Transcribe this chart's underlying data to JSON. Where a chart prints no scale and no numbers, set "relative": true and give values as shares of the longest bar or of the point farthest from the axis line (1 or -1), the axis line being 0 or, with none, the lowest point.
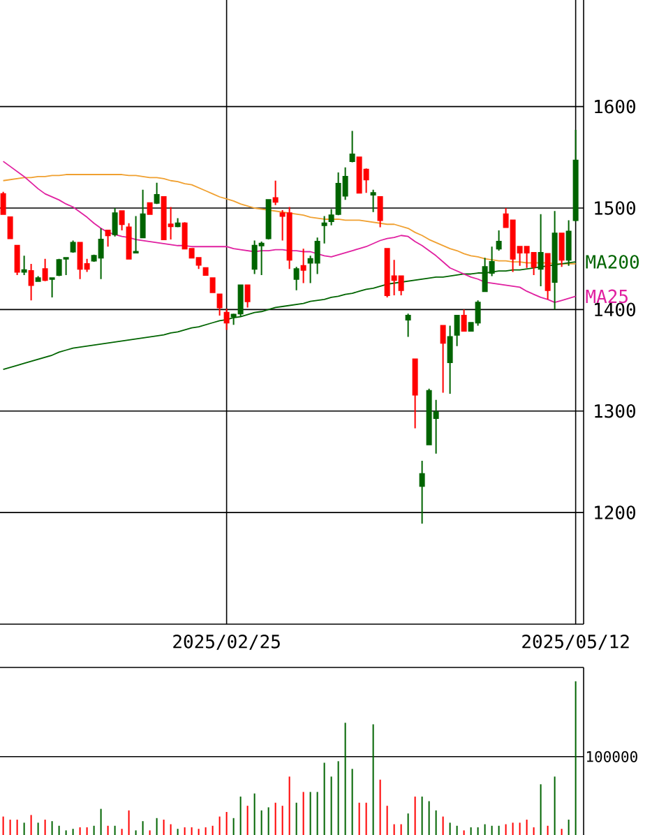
{
  "chart_data": [
    {
      "type": "candlestick",
      "categories": [
        null,
        null,
        null,
        null,
        null,
        null,
        null,
        null,
        null,
        null,
        null,
        null,
        null,
        null,
        null,
        null,
        null,
        null,
        null,
        null,
        null,
        null,
        null,
        null,
        null,
        null,
        null,
        null,
        null,
        null,
        null,
        null,
        "2025/02/25",
        null,
        null,
        null,
        null,
        null,
        null,
        null,
        null,
        null,
        null,
        null,
        null,
        null,
        null,
        null,
        null,
        null,
        null,
        null,
        null,
        null,
        null,
        null,
        null,
        null,
        null,
        null,
        null,
        null,
        null,
        null,
        null,
        null,
        null,
        null,
        null,
        null,
        null,
        null,
        null,
        null,
        null,
        null,
        null,
        null,
        null,
        null,
        null,
        null,
        "2025/05/12"
      ],
      "ohlc": [
        [
          1514,
          1516,
          1494,
          1494
        ],
        [
          1491,
          1491,
          1470,
          1470
        ],
        [
          1463,
          1463,
          1434,
          1437
        ],
        [
          1437,
          1453,
          1434,
          1439
        ],
        [
          1438,
          1445,
          1409,
          1424
        ],
        [
          1428,
          1433,
          1428,
          1431
        ],
        [
          1440,
          1450,
          1428,
          1429
        ],
        [
          1430,
          1431,
          1412,
          1431
        ],
        [
          1434,
          1450,
          1433,
          1449
        ],
        [
          1450,
          1451,
          1434,
          1451
        ],
        [
          1457,
          1468,
          1456,
          1466
        ],
        [
          1466,
          1466,
          1430,
          1440
        ],
        [
          1445,
          1450,
          1437,
          1440
        ],
        [
          1448,
          1454,
          1447,
          1453
        ],
        [
          1451,
          1480,
          1430,
          1469
        ],
        [
          1478,
          1478,
          1462,
          1473
        ],
        [
          1474,
          1500,
          1472,
          1495
        ],
        [
          1497,
          1497,
          1478,
          1484
        ],
        [
          1481,
          1485,
          1450,
          1450
        ],
        [
          1456,
          1492,
          1456,
          1457
        ],
        [
          1471,
          1518,
          1471,
          1494
        ],
        [
          1505,
          1505,
          1494,
          1494
        ],
        [
          1505,
          1525,
          1504,
          1513
        ],
        [
          1511,
          1511,
          1469,
          1469
        ],
        [
          1484,
          1501,
          1469,
          1482
        ],
        [
          1482,
          1490,
          1481,
          1485
        ],
        [
          1485,
          1486,
          1460,
          1460
        ],
        [
          1460,
          1460,
          1451,
          1451
        ],
        [
          1451,
          1451,
          1440,
          1444
        ],
        [
          1441,
          1441,
          1434,
          1434
        ],
        [
          1431,
          1431,
          1417,
          1417
        ],
        [
          1415,
          1415,
          1394,
          1402
        ],
        [
          1397,
          1401,
          1380,
          1387
        ],
        [
          1393,
          1396,
          1385,
          1395
        ],
        [
          1396,
          1424,
          1393,
          1424
        ],
        [
          1424,
          1424,
          1402,
          1408
        ],
        [
          1440,
          1468,
          1435,
          1463
        ],
        [
          1463,
          1467,
          1434,
          1465
        ],
        [
          1470,
          1508,
          1469,
          1508
        ],
        [
          1510,
          1527,
          1503,
          1506
        ],
        [
          1495,
          1498,
          1468,
          1492
        ],
        [
          1495,
          1501,
          1440,
          1449
        ],
        [
          1430,
          1442,
          1419,
          1440
        ],
        [
          1443,
          1460,
          1426,
          1439
        ],
        [
          1446,
          1453,
          1426,
          1450
        ],
        [
          1446,
          1471,
          1435,
          1467
        ],
        [
          1483,
          1492,
          1465,
          1485
        ],
        [
          1487,
          1499,
          1483,
          1493
        ],
        [
          1494,
          1535,
          1493,
          1524
        ],
        [
          1512,
          1540,
          1508,
          1531
        ],
        [
          1546,
          1576,
          1545,
          1553
        ],
        [
          1550,
          1550,
          1515,
          1515
        ],
        [
          1538,
          1539,
          1515,
          1528
        ],
        [
          1513,
          1518,
          1496,
          1515
        ],
        [
          1511,
          1511,
          1481,
          1488
        ],
        [
          1460,
          1460,
          1412,
          1414
        ],
        [
          1433,
          1449,
          1414,
          1429
        ],
        [
          1433,
          1433,
          1414,
          1419
        ],
        [
          1390,
          1396,
          1373,
          1394
        ],
        [
          1351,
          1351,
          1283,
          1316
        ],
        [
          1226,
          1251,
          1189,
          1238
        ],
        [
          1267,
          1322,
          1267,
          1320
        ],
        [
          1293,
          1311,
          1258,
          1299
        ],
        [
          1384,
          1384,
          1318,
          1367
        ],
        [
          1348,
          1384,
          1317,
          1373
        ],
        [
          1375,
          1394,
          1364,
          1394
        ],
        [
          1394,
          1400,
          1379,
          1379
        ],
        [
          1379,
          1387,
          1379,
          1387
        ],
        [
          1387,
          1409,
          1384,
          1407
        ],
        [
          1418,
          1451,
          1418,
          1442
        ],
        [
          1436,
          1462,
          1433,
          1447
        ],
        [
          1460,
          1478,
          1458,
          1467
        ],
        [
          1494,
          1500,
          1481,
          1481
        ],
        [
          1488,
          1488,
          1437,
          1450
        ],
        [
          1462,
          1462,
          1443,
          1456
        ],
        [
          1462,
          1462,
          1441,
          1456
        ],
        [
          1456,
          1456,
          1434,
          1442
        ],
        [
          1440,
          1494,
          1423,
          1456
        ],
        [
          1455,
          1455,
          1410,
          1419
        ],
        [
          1427,
          1497,
          1400,
          1475
        ],
        [
          1475,
          1475,
          1442,
          1449
        ],
        [
          1449,
          1488,
          1443,
          1477
        ],
        [
          1488,
          1577,
          1487,
          1547
        ]
      ],
      "colors": [
        "#ff0000",
        "#ff0000",
        "#ff0000",
        "#006400",
        "#ff0000",
        "#006400",
        "#ff0000",
        "#006400",
        "#006400",
        "#006400",
        "#006400",
        "#ff0000",
        "#ff0000",
        "#006400",
        "#006400",
        "#ff0000",
        "#006400",
        "#ff0000",
        "#ff0000",
        "#006400",
        "#006400",
        "#ff0000",
        "#006400",
        "#ff0000",
        "#ff0000",
        "#006400",
        "#ff0000",
        "#ff0000",
        "#ff0000",
        "#ff0000",
        "#ff0000",
        "#ff0000",
        "#ff0000",
        "#006400",
        "#006400",
        "#ff0000",
        "#006400",
        "#006400",
        "#006400",
        "#ff0000",
        "#ff0000",
        "#ff0000",
        "#006400",
        "#ff0000",
        "#006400",
        "#006400",
        "#006400",
        "#006400",
        "#006400",
        "#006400",
        "#006400",
        "#ff0000",
        "#ff0000",
        "#006400",
        "#ff0000",
        "#ff0000",
        "#ff0000",
        "#ff0000",
        "#006400",
        "#ff0000",
        "#006400",
        "#006400",
        "#006400",
        "#ff0000",
        "#006400",
        "#006400",
        "#ff0000",
        "#006400",
        "#006400",
        "#006400",
        "#006400",
        "#006400",
        "#ff0000",
        "#ff0000",
        "#ff0000",
        "#ff0000",
        "#ff0000",
        "#006400",
        "#ff0000",
        "#006400",
        "#ff0000",
        "#006400",
        "#006400"
      ],
      "series": [
        {
          "type": "line",
          "color": "#f0a030",
          "values": [
            1527,
            1528,
            1529,
            1530,
            1530,
            1531,
            1531,
            1532,
            1532,
            1533,
            1533,
            1533,
            1533,
            1533,
            1533,
            1533,
            1533,
            1533,
            1532,
            1532,
            1531,
            1530,
            1530,
            1529,
            1527,
            1526,
            1524,
            1523,
            1520,
            1517,
            1514,
            1511,
            1509,
            1507,
            1504,
            1502,
            1500,
            1499,
            1498,
            1497,
            1496,
            1495,
            1494,
            1493,
            1491,
            1490,
            1489,
            1489,
            1489,
            1488,
            1488,
            1488,
            1487,
            1486,
            1485,
            1484,
            1484,
            1482,
            1480,
            1476,
            1473,
            1469,
            1466,
            1463,
            1460,
            1458,
            1455,
            1453,
            1452,
            1450,
            1449,
            1448,
            1448,
            1447,
            1447,
            1446,
            1446,
            1446,
            1446,
            1445,
            1445,
            1445,
            1445
          ]
        },
        {
          "type": "line",
          "name": "MA200",
          "color": "#006400",
          "values": [
            1341,
            1343,
            1345,
            1347,
            1349,
            1351,
            1353,
            1355,
            1358,
            1360,
            1362,
            1363,
            1364,
            1365,
            1366,
            1367,
            1368,
            1369,
            1370,
            1371,
            1372,
            1373,
            1374,
            1375,
            1377,
            1378,
            1380,
            1382,
            1383,
            1385,
            1387,
            1389,
            1390,
            1392,
            1393,
            1395,
            1397,
            1398,
            1400,
            1402,
            1403,
            1404,
            1405,
            1406,
            1408,
            1409,
            1410,
            1412,
            1413,
            1415,
            1416,
            1418,
            1420,
            1421,
            1423,
            1425,
            1426,
            1427,
            1428,
            1429,
            1430,
            1431,
            1432,
            1432,
            1433,
            1434,
            1435,
            1435,
            1436,
            1436,
            1437,
            1438,
            1438,
            1439,
            1439,
            1440,
            1441,
            1442,
            1443,
            1444,
            1445,
            1446,
            1447
          ]
        },
        {
          "type": "line",
          "name": "MA25",
          "color": "#e020a0",
          "values": [
            1546,
            1541,
            1536,
            1531,
            1525,
            1519,
            1514,
            1511,
            1508,
            1504,
            1501,
            1496,
            1491,
            1485,
            1480,
            1476,
            1474,
            1472,
            1471,
            1469,
            1468,
            1467,
            1466,
            1465,
            1464,
            1463,
            1463,
            1462,
            1462,
            1462,
            1462,
            1462,
            1462,
            1460,
            1459,
            1458,
            1457,
            1458,
            1458,
            1459,
            1459,
            1458,
            1458,
            1457,
            1457,
            1455,
            1453,
            1452,
            1454,
            1456,
            1458,
            1460,
            1462,
            1465,
            1468,
            1470,
            1471,
            1473,
            1472,
            1467,
            1463,
            1458,
            1453,
            1447,
            1441,
            1438,
            1435,
            1432,
            1430,
            1427,
            1426,
            1425,
            1424,
            1423,
            1422,
            1418,
            1415,
            1412,
            1410,
            1407,
            1409,
            1411,
            1413
          ]
        }
      ],
      "ylim": [
        1090,
        1705
      ],
      "yticks": [
        1200,
        1300,
        1400,
        1500,
        1600
      ],
      "grid": true
    },
    {
      "type": "bar",
      "relative": true,
      "categories": [
        null,
        null,
        null,
        null,
        null,
        null,
        null,
        null,
        null,
        null,
        null,
        null,
        null,
        null,
        null,
        null,
        null,
        null,
        null,
        null,
        null,
        null,
        null,
        null,
        null,
        null,
        null,
        null,
        null,
        null,
        null,
        null,
        null,
        null,
        null,
        null,
        null,
        null,
        null,
        null,
        null,
        null,
        null,
        null,
        null,
        null,
        null,
        null,
        null,
        null,
        null,
        null,
        null,
        null,
        null,
        null,
        null,
        null,
        null,
        null,
        null,
        null,
        null,
        null,
        null,
        null,
        null,
        null,
        null,
        null,
        null,
        null,
        null,
        null,
        null,
        null,
        null,
        null,
        null,
        null,
        null,
        null,
        null
      ],
      "values": [
        0.12,
        0.1,
        0.1,
        0.08,
        0.13,
        0.08,
        0.1,
        0.09,
        0.06,
        0.03,
        0.04,
        0.05,
        0.05,
        0.06,
        0.17,
        0.06,
        0.06,
        0.04,
        0.16,
        0.03,
        0.09,
        0.03,
        0.11,
        0.1,
        0.07,
        0.04,
        0.05,
        0.05,
        0.04,
        0.05,
        0.06,
        0.12,
        0.15,
        0.11,
        0.25,
        0.19,
        0.27,
        0.16,
        0.18,
        0.21,
        0.19,
        0.38,
        0.21,
        0.28,
        0.28,
        0.28,
        0.47,
        0.38,
        0.48,
        0.73,
        0.43,
        0.21,
        0.21,
        0.72,
        0.36,
        0.19,
        0.07,
        0.07,
        0.14,
        0.25,
        0.25,
        0.22,
        0.16,
        0.12,
        0.08,
        0.06,
        0.03,
        0.05,
        0.05,
        0.07,
        0.06,
        0.06,
        0.07,
        0.08,
        0.08,
        0.1,
        0.05,
        0.33,
        0.06,
        0.38,
        0.04,
        0.1,
        1
      ],
      "colors": [
        "#ff0000",
        "#ff0000",
        "#ff0000",
        "#006400",
        "#ff0000",
        "#006400",
        "#ff0000",
        "#006400",
        "#006400",
        "#006400",
        "#006400",
        "#ff0000",
        "#ff0000",
        "#006400",
        "#006400",
        "#ff0000",
        "#006400",
        "#ff0000",
        "#ff0000",
        "#006400",
        "#006400",
        "#ff0000",
        "#006400",
        "#ff0000",
        "#ff0000",
        "#006400",
        "#ff0000",
        "#ff0000",
        "#ff0000",
        "#ff0000",
        "#ff0000",
        "#ff0000",
        "#ff0000",
        "#006400",
        "#006400",
        "#ff0000",
        "#006400",
        "#006400",
        "#006400",
        "#ff0000",
        "#ff0000",
        "#ff0000",
        "#006400",
        "#ff0000",
        "#006400",
        "#006400",
        "#006400",
        "#006400",
        "#006400",
        "#006400",
        "#006400",
        "#ff0000",
        "#ff0000",
        "#006400",
        "#ff0000",
        "#ff0000",
        "#ff0000",
        "#ff0000",
        "#006400",
        "#ff0000",
        "#006400",
        "#006400",
        "#006400",
        "#ff0000",
        "#006400",
        "#006400",
        "#ff0000",
        "#006400",
        "#006400",
        "#006400",
        "#006400",
        "#006400",
        "#ff0000",
        "#ff0000",
        "#ff0000",
        "#ff0000",
        "#ff0000",
        "#006400",
        "#ff0000",
        "#006400",
        "#ff0000",
        "#006400",
        "#006400"
      ],
      "ref_lines": [
        {
          "axis": "y",
          "value": 0.51
        }
      ],
      "annotations": [
        "100000"
      ]
    }
  ]
}
